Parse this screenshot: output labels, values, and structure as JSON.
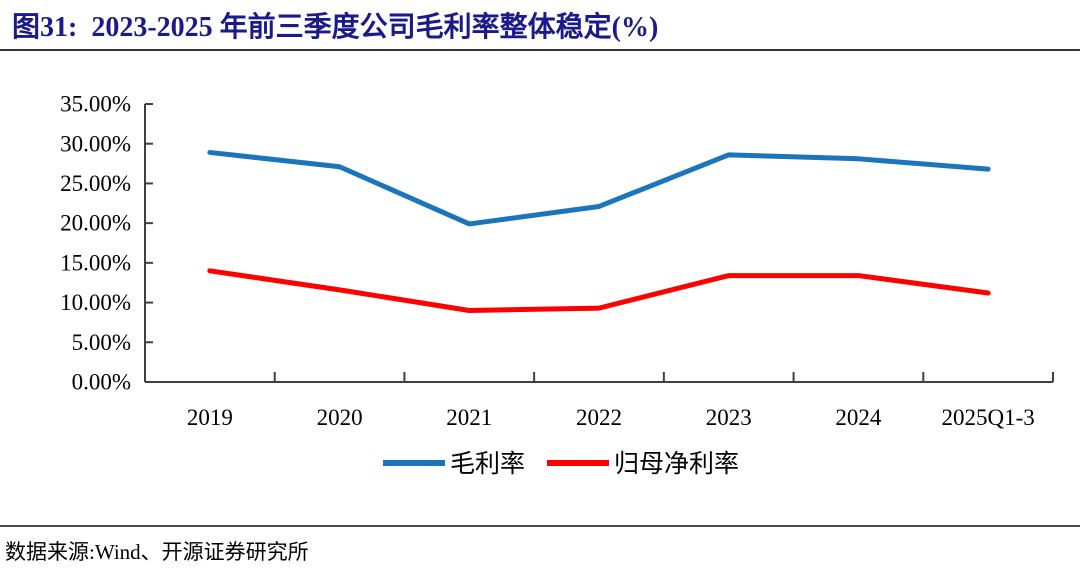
{
  "figure": {
    "title": "图31:  2023-2025 年前三季度公司毛利率整体稳定(%)",
    "source_label": "数据来源:Wind、开源证券研究所"
  },
  "chart_data": {
    "type": "line",
    "categories": [
      "2019",
      "2020",
      "2021",
      "2022",
      "2023",
      "2024",
      "2025Q1-3"
    ],
    "series": [
      {
        "name": "毛利率",
        "color": "#1B75BC",
        "values": [
          28.9,
          27.1,
          19.9,
          22.1,
          28.6,
          28.1,
          26.8
        ]
      },
      {
        "name": "归母净利率",
        "color": "#FE0000",
        "values": [
          14.0,
          11.6,
          9.0,
          9.3,
          13.4,
          13.4,
          11.2
        ]
      }
    ],
    "ylim": [
      0,
      35
    ],
    "ytick_step": 5,
    "yticklabels": [
      "0.00%",
      "5.00%",
      "10.00%",
      "15.00%",
      "20.00%",
      "25.00%",
      "30.00%",
      "35.00%"
    ],
    "grid": false,
    "legend_position": "bottom",
    "axis_color": "#404040",
    "tick_style": "inside"
  }
}
